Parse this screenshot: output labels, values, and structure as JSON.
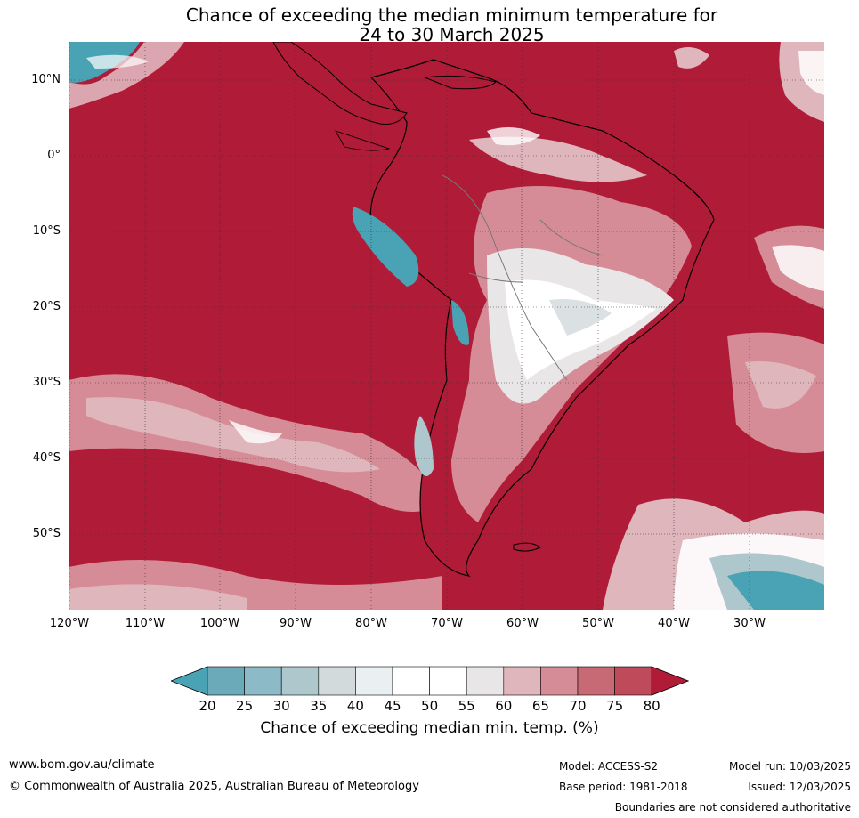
{
  "title": {
    "line1": "Chance of exceeding the median minimum temperature for",
    "line2": "24 to 30 March 2025"
  },
  "map": {
    "lat_labels": [
      "10°N",
      "0°",
      "10°S",
      "20°S",
      "30°S",
      "40°S",
      "50°S"
    ],
    "lon_labels": [
      "120°W",
      "110°W",
      "100°W",
      "90°W",
      "80°W",
      "70°W",
      "60°W",
      "50°W",
      "40°W",
      "30°W"
    ],
    "colors": {
      "ocean_high": "#b01c38",
      "cool_deep": "#4aa3b5",
      "warm_mid": "#d9737f"
    }
  },
  "colorbar": {
    "ticks": [
      "20",
      "25",
      "30",
      "35",
      "40",
      "45",
      "50",
      "55",
      "60",
      "65",
      "70",
      "75",
      "80"
    ],
    "colors": [
      "#4aa3b5",
      "#6aaab9",
      "#8cbac6",
      "#adc7cd",
      "#d2dadc",
      "#eaf0f2",
      "#ffffff",
      "#ffffff",
      "#e9e6e7",
      "#e0b6bd",
      "#d68c96",
      "#c86a76",
      "#be4a5a",
      "#b01c38"
    ],
    "label": "Chance of exceeding median min. temp. (%)"
  },
  "footer": {
    "website": "www.bom.gov.au/climate",
    "copyright": "© Commonwealth of Australia 2025, Australian Bureau of Meteorology",
    "model": "Model: ACCESS-S2",
    "base_period": "Base period: 1981-2018",
    "model_run": "Model run: 10/03/2025",
    "issued": "Issued: 12/03/2025",
    "disclaimer": "Boundaries are not considered authoritative"
  }
}
